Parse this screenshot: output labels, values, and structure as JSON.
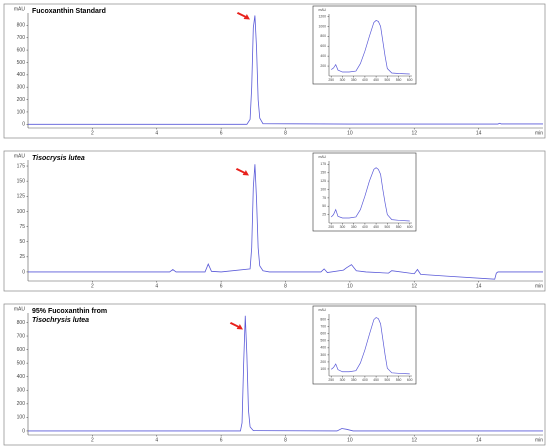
{
  "chart_data": [
    {
      "type": "line",
      "title": [
        "Fucoxanthin Standard"
      ],
      "y_label": "mAU",
      "x_label": "min",
      "xlim": [
        0,
        16
      ],
      "xticks": [
        2,
        4,
        6,
        8,
        10,
        12,
        14
      ],
      "ylim": [
        -30,
        900
      ],
      "yticks": [
        0,
        100,
        200,
        300,
        400,
        500,
        600,
        700,
        800
      ],
      "series": [
        {
          "color": "#5a5ad8",
          "x": [
            0,
            3,
            6.8,
            6.9,
            6.95,
            7.0,
            7.05,
            7.1,
            7.15,
            7.2,
            7.3,
            10,
            14.6,
            14.65,
            14.7,
            16
          ],
          "values": [
            0,
            0,
            0,
            40,
            300,
            780,
            880,
            620,
            200,
            50,
            5,
            2,
            2,
            8,
            3,
            3
          ]
        }
      ],
      "inset": {
        "type": "line",
        "y_label": "mAU",
        "color": "#5a5ad8",
        "xlim": [
          240,
          610
        ],
        "xticks": [
          250,
          300,
          350,
          400,
          450,
          500,
          550,
          600
        ],
        "ylim": [
          0,
          1250
        ],
        "yticks": [
          200,
          400,
          600,
          800,
          1000,
          1200
        ],
        "x": [
          250,
          260,
          270,
          280,
          300,
          330,
          360,
          380,
          400,
          420,
          440,
          450,
          460,
          470,
          480,
          490,
          500,
          520,
          550,
          600
        ],
        "values": [
          130,
          160,
          230,
          120,
          80,
          80,
          100,
          250,
          500,
          800,
          1080,
          1120,
          1100,
          1000,
          700,
          400,
          150,
          60,
          50,
          40
        ]
      }
    },
    {
      "type": "line",
      "title": [
        "Tisocrysis lutea"
      ],
      "y_label": "mAU",
      "x_label": "min",
      "xlim": [
        0,
        16
      ],
      "xticks": [
        2,
        4,
        6,
        8,
        10,
        12,
        14
      ],
      "ylim": [
        -15,
        185
      ],
      "yticks": [
        0,
        25,
        50,
        75,
        100,
        125,
        150,
        175
      ],
      "series": [
        {
          "color": "#5a5ad8",
          "x": [
            0,
            4.4,
            4.5,
            4.6,
            5.5,
            5.6,
            5.7,
            6.0,
            6.9,
            6.95,
            7.0,
            7.05,
            7.1,
            7.15,
            7.2,
            7.3,
            7.5,
            9.1,
            9.2,
            9.3,
            9.8,
            9.9,
            10.05,
            10.2,
            10.5,
            11.2,
            11.3,
            12.0,
            12.1,
            12.2,
            13,
            14.5,
            14.55,
            14.6,
            16
          ],
          "values": [
            0,
            0,
            4,
            0,
            0,
            13,
            1,
            0,
            5,
            40,
            140,
            178,
            120,
            40,
            10,
            2,
            0,
            0,
            5,
            -1,
            3,
            7,
            12,
            2,
            0,
            -2,
            2,
            -3,
            4,
            -4,
            -7,
            -12,
            -2,
            0,
            0
          ]
        }
      ],
      "inset": {
        "type": "line",
        "y_label": "mAU",
        "color": "#5a5ad8",
        "xlim": [
          240,
          610
        ],
        "xticks": [
          250,
          300,
          350,
          400,
          450,
          500,
          550,
          600
        ],
        "ylim": [
          0,
          185
        ],
        "yticks": [
          25,
          50,
          75,
          100,
          125,
          150,
          175
        ],
        "x": [
          250,
          260,
          270,
          280,
          300,
          330,
          360,
          380,
          400,
          420,
          440,
          450,
          460,
          470,
          480,
          490,
          500,
          520,
          550,
          600
        ],
        "values": [
          18,
          25,
          40,
          20,
          15,
          15,
          18,
          40,
          80,
          125,
          160,
          165,
          160,
          145,
          100,
          60,
          25,
          10,
          8,
          6
        ]
      }
    },
    {
      "type": "line",
      "title": [
        "95% Fucoxanthin from",
        "Tisochrysis lutea"
      ],
      "y_label": "mAU",
      "x_label": "min",
      "xlim": [
        0,
        16
      ],
      "xticks": [
        2,
        4,
        6,
        8,
        10,
        12,
        14
      ],
      "ylim": [
        -30,
        870
      ],
      "yticks": [
        0,
        100,
        200,
        300,
        400,
        500,
        600,
        700,
        800
      ],
      "series": [
        {
          "color": "#5a5ad8",
          "x": [
            0,
            6.6,
            6.65,
            6.7,
            6.75,
            6.8,
            6.85,
            6.9,
            7.0,
            9.6,
            9.75,
            9.9,
            10.1,
            16
          ],
          "values": [
            0,
            0,
            60,
            500,
            850,
            560,
            150,
            30,
            2,
            0,
            18,
            12,
            0,
            0
          ]
        }
      ],
      "inset": {
        "type": "line",
        "y_label": "mAU",
        "color": "#5a5ad8",
        "xlim": [
          240,
          610
        ],
        "xticks": [
          250,
          300,
          350,
          400,
          450,
          500,
          550,
          600
        ],
        "ylim": [
          0,
          880
        ],
        "yticks": [
          100,
          200,
          300,
          400,
          500,
          600,
          700,
          800
        ],
        "x": [
          250,
          260,
          270,
          280,
          300,
          330,
          360,
          380,
          400,
          420,
          440,
          450,
          460,
          470,
          480,
          490,
          500,
          520,
          550,
          600
        ],
        "values": [
          95,
          120,
          170,
          90,
          60,
          60,
          75,
          185,
          370,
          590,
          800,
          830,
          815,
          740,
          520,
          300,
          110,
          45,
          38,
          30
        ]
      }
    }
  ]
}
